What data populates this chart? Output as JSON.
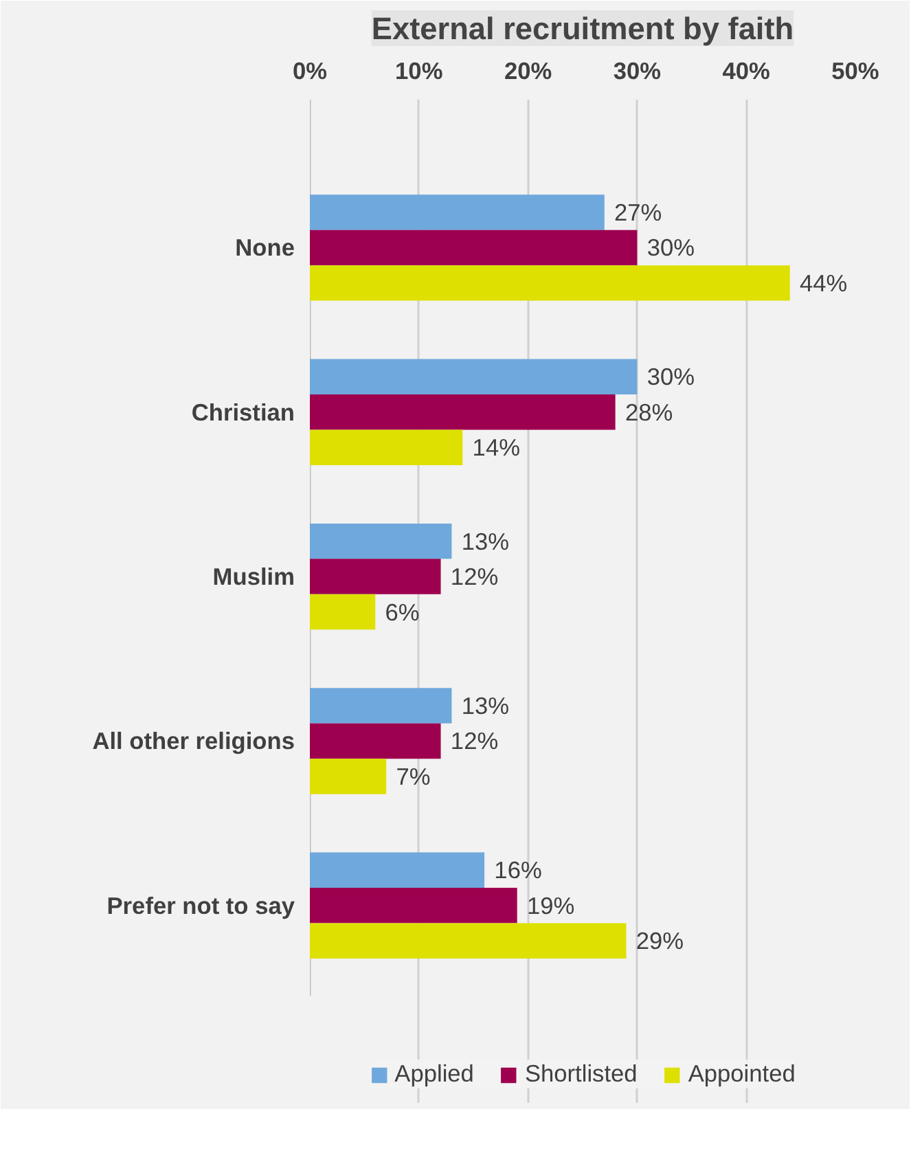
{
  "chart_data": {
    "type": "bar",
    "orientation": "horizontal",
    "title": "External recruitment by faith",
    "categories": [
      "None",
      "Christian",
      "Muslim",
      "All other religions",
      "Prefer not to say"
    ],
    "series": [
      {
        "name": "Applied",
        "color": "#6fa8dc",
        "values": [
          27,
          30,
          13,
          13,
          16
        ]
      },
      {
        "name": "Shortlisted",
        "color": "#9e0050",
        "values": [
          30,
          28,
          12,
          12,
          19
        ]
      },
      {
        "name": "Appointed",
        "color": "#dde000",
        "values": [
          44,
          14,
          6,
          7,
          29
        ]
      }
    ],
    "xlim": [
      0,
      50
    ],
    "xticks": [
      {
        "value": 0,
        "label": "0%"
      },
      {
        "value": 10,
        "label": "10%"
      },
      {
        "value": 20,
        "label": "20%"
      },
      {
        "value": 30,
        "label": "30%"
      },
      {
        "value": 40,
        "label": "40%"
      },
      {
        "value": 50,
        "label": "50%"
      }
    ],
    "value_labels": [
      [
        "27%",
        "30%",
        "13%",
        "13%",
        "16%"
      ],
      [
        "30%",
        "28%",
        "12%",
        "12%",
        "19%"
      ],
      [
        "44%",
        "14%",
        "6%",
        "7%",
        "29%"
      ]
    ],
    "grid": "x",
    "legend": "bottom"
  }
}
